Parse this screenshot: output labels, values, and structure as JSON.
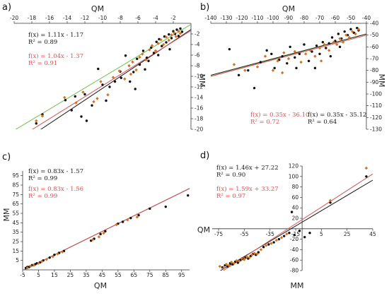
{
  "chart_data": [
    {
      "panel": "a)",
      "type": "scatter",
      "xlabel": "QM",
      "ylabel": "MM",
      "xlim": [
        -20,
        0
      ],
      "ylim": [
        -20,
        0
      ],
      "xticks": [
        "-20",
        "-18",
        "-16",
        "-14",
        "-12",
        "-10",
        "-8",
        "-6",
        "-4",
        "-2"
      ],
      "yticks": [
        "-2",
        "-4",
        "-6",
        "-8",
        "-10",
        "-12",
        "-14",
        "-16",
        "-18",
        "-20"
      ],
      "fits": [
        {
          "eq": "f(x) = 1.11x - 1.17",
          "r2": "R² = 0.89",
          "slope": 1.11,
          "intercept": -1.17,
          "color": "#1a1a1a"
        },
        {
          "eq": "f(x) = 1.04x - 1.37",
          "r2": "R² = 0.91",
          "slope": 1.04,
          "intercept": -1.37,
          "color": "#d9534f"
        }
      ],
      "extra_lines": [
        {
          "slope": 1.0,
          "intercept": -0.2,
          "color": "#6fbf4a"
        }
      ],
      "series": [
        {
          "color": "#111111",
          "points": [
            [
              -17.5,
              -18.9
            ],
            [
              -16.8,
              -17.2
            ],
            [
              -14.2,
              -14.5
            ],
            [
              -13.1,
              -13.8
            ],
            [
              -12.0,
              -13.4
            ],
            [
              -11.8,
              -18.4
            ],
            [
              -11.2,
              -15.5
            ],
            [
              -10.5,
              -8.6
            ],
            [
              -10.0,
              -11.6
            ],
            [
              -9.6,
              -14.6
            ],
            [
              -8.6,
              -11.0
            ],
            [
              -7.9,
              -10.3
            ],
            [
              -7.4,
              -6.1
            ],
            [
              -6.9,
              -11.0
            ],
            [
              -6.5,
              -9.2
            ],
            [
              -6.1,
              -6.7
            ],
            [
              -5.8,
              -7.8
            ],
            [
              -5.4,
              -5.2
            ],
            [
              -5.0,
              -6.5
            ],
            [
              -4.8,
              -7.1
            ],
            [
              -4.5,
              -4.6
            ],
            [
              -4.2,
              -5.6
            ],
            [
              -3.9,
              -3.5
            ],
            [
              -3.6,
              -3.0
            ],
            [
              -3.3,
              -4.3
            ],
            [
              -3.0,
              -2.5
            ],
            [
              -2.8,
              -3.6
            ],
            [
              -2.5,
              -2.1
            ],
            [
              -2.2,
              -2.8
            ],
            [
              -2.0,
              -1.5
            ],
            [
              -1.8,
              -2.0
            ],
            [
              -1.6,
              -1.2
            ],
            [
              -1.4,
              -2.4
            ],
            [
              -1.2,
              -1.0
            ],
            [
              -1.0,
              -1.6
            ],
            [
              -2.4,
              -4.9
            ],
            [
              -3.7,
              -6.0
            ],
            [
              -5.2,
              -8.7
            ],
            [
              -6.3,
              -12.4
            ],
            [
              -8.0,
              -9.1
            ],
            [
              -9.2,
              -12.0
            ],
            [
              -12.4,
              -17.6
            ],
            [
              -13.5,
              -16.4
            ]
          ]
        },
        {
          "color": "#d4711f",
          "points": [
            [
              -17.5,
              -18.4
            ],
            [
              -16.8,
              -17.5
            ],
            [
              -14.3,
              -14.0
            ],
            [
              -13.0,
              -15.0
            ],
            [
              -12.2,
              -13.0
            ],
            [
              -11.0,
              -14.8
            ],
            [
              -10.2,
              -11.0
            ],
            [
              -9.4,
              -13.5
            ],
            [
              -8.8,
              -10.2
            ],
            [
              -8.1,
              -9.0
            ],
            [
              -7.5,
              -10.5
            ],
            [
              -7.0,
              -8.0
            ],
            [
              -6.6,
              -7.3
            ],
            [
              -6.2,
              -8.8
            ],
            [
              -5.8,
              -6.4
            ],
            [
              -5.5,
              -5.8
            ],
            [
              -5.1,
              -6.9
            ],
            [
              -4.7,
              -5.0
            ],
            [
              -4.4,
              -4.2
            ],
            [
              -4.0,
              -5.2
            ],
            [
              -3.7,
              -3.8
            ],
            [
              -3.4,
              -3.1
            ],
            [
              -3.1,
              -4.0
            ],
            [
              -2.8,
              -2.6
            ],
            [
              -2.5,
              -3.2
            ],
            [
              -2.2,
              -2.2
            ],
            [
              -1.9,
              -1.8
            ],
            [
              -1.7,
              -2.5
            ],
            [
              -1.4,
              -1.5
            ],
            [
              -1.2,
              -1.9
            ],
            [
              -10.6,
              -14.2
            ],
            [
              -6.8,
              -9.6
            ]
          ]
        }
      ]
    },
    {
      "panel": "b)",
      "type": "scatter",
      "xlabel": "QM",
      "ylabel": "MM",
      "xlim": [
        -140,
        -40
      ],
      "ylim": [
        -130,
        -40
      ],
      "xticks": [
        "-140",
        "-130",
        "-120",
        "-110",
        "-100",
        "-90",
        "-80",
        "-70",
        "-60",
        "-50",
        "-40"
      ],
      "yticks": [
        "-40",
        "-50",
        "-60",
        "-70",
        "-80",
        "-90",
        "-100",
        "-110",
        "-120",
        "-130"
      ],
      "fits": [
        {
          "eq": "f(x) = 0.35x - 36.10",
          "r2": "R² = 0.72",
          "slope": 0.35,
          "intercept": -36.1,
          "color": "#d9534f"
        },
        {
          "eq": "f(x) = 0.35x - 35.12",
          "r2": "R² = 0.64",
          "slope": 0.35,
          "intercept": -35.12,
          "color": "#1a1a1a"
        }
      ],
      "extra_lines": [
        {
          "slope": 0.36,
          "intercept": -34.6,
          "color": "#6fbf4a"
        }
      ],
      "series": [
        {
          "color": "#111111",
          "points": [
            [
              -128,
              -62
            ],
            [
              -122,
              -84
            ],
            [
              -116,
              -80
            ],
            [
              -112,
              -95
            ],
            [
              -108,
              -73
            ],
            [
              -104,
              -63
            ],
            [
              -101,
              -66
            ],
            [
              -99,
              -78
            ],
            [
              -96,
              -71
            ],
            [
              -94,
              -68
            ],
            [
              -91,
              -74
            ],
            [
              -89,
              -60
            ],
            [
              -86,
              -69
            ],
            [
              -83,
              -66
            ],
            [
              -80,
              -58
            ],
            [
              -77,
              -72
            ],
            [
              -75,
              -64
            ],
            [
              -72,
              -59
            ],
            [
              -70,
              -66
            ],
            [
              -68,
              -56
            ],
            [
              -66,
              -61
            ],
            [
              -64,
              -57
            ],
            [
              -62,
              -52
            ],
            [
              -60,
              -55
            ],
            [
              -58,
              -49
            ],
            [
              -56,
              -53
            ],
            [
              -54,
              -47
            ],
            [
              -52,
              -50
            ],
            [
              -50,
              -45
            ],
            [
              -48,
              -48
            ],
            [
              -46,
              -44
            ],
            [
              -45,
              -46
            ],
            [
              -57,
              -60
            ],
            [
              -63,
              -68
            ],
            [
              -73,
              -78
            ],
            [
              -85,
              -78
            ]
          ]
        },
        {
          "color": "#d4711f",
          "points": [
            [
              -125,
              -75
            ],
            [
              -118,
              -80
            ],
            [
              -110,
              -77
            ],
            [
              -105,
              -68
            ],
            [
              -100,
              -80
            ],
            [
              -97,
              -72
            ],
            [
              -93,
              -65
            ],
            [
              -90,
              -70
            ],
            [
              -86,
              -64
            ],
            [
              -82,
              -73
            ],
            [
              -79,
              -66
            ],
            [
              -76,
              -63
            ],
            [
              -73,
              -68
            ],
            [
              -70,
              -61
            ],
            [
              -67,
              -58
            ],
            [
              -64,
              -63
            ],
            [
              -61,
              -56
            ],
            [
              -59,
              -58
            ],
            [
              -57,
              -53
            ],
            [
              -55,
              -56
            ],
            [
              -53,
              -50
            ],
            [
              -51,
              -52
            ],
            [
              -49,
              -47
            ],
            [
              -47,
              -49
            ],
            [
              -45,
              -45
            ],
            [
              -69,
              -72
            ],
            [
              -94,
              -82
            ]
          ]
        }
      ]
    },
    {
      "panel": "c)",
      "type": "scatter",
      "xlabel": "QM",
      "ylabel": "MM",
      "xlim": [
        -5,
        100
      ],
      "ylim": [
        -5,
        100
      ],
      "xticks": [
        "-5",
        "5",
        "15",
        "25",
        "35",
        "45",
        "55",
        "65",
        "75",
        "85",
        "95"
      ],
      "yticks": [
        "5",
        "15",
        "25",
        "35",
        "45",
        "55",
        "65",
        "75",
        "85",
        "95"
      ],
      "fits": [
        {
          "eq": "f(x) = 0.83x - 1.57",
          "r2": "R² = 0.99",
          "slope": 0.83,
          "intercept": -1.57,
          "color": "#1a1a1a"
        },
        {
          "eq": "f(x) = 0.83x - 1.56",
          "r2": "R² = 0.99",
          "slope": 0.83,
          "intercept": -1.56,
          "color": "#d9534f"
        }
      ],
      "extra_lines": [],
      "series": [
        {
          "color": "#111111",
          "points": [
            [
              -3,
              -3
            ],
            [
              -2,
              -2
            ],
            [
              -1,
              -2
            ],
            [
              0,
              -1
            ],
            [
              1,
              0
            ],
            [
              2,
              0
            ],
            [
              3,
              1
            ],
            [
              4,
              2
            ],
            [
              6,
              3
            ],
            [
              8,
              5
            ],
            [
              12,
              8
            ],
            [
              15,
              11
            ],
            [
              18,
              13
            ],
            [
              21,
              15
            ],
            [
              38,
              26
            ],
            [
              40,
              28
            ],
            [
              44,
              33
            ],
            [
              47,
              36
            ],
            [
              55,
              44
            ],
            [
              58,
              46
            ],
            [
              63,
              50
            ],
            [
              68,
              53
            ],
            [
              75,
              60
            ],
            [
              85,
              62
            ],
            [
              99,
              74
            ]
          ]
        },
        {
          "color": "#d4711f",
          "points": [
            [
              -2,
              -3
            ],
            [
              0,
              -1
            ],
            [
              2,
              0
            ],
            [
              5,
              2
            ],
            [
              7,
              4
            ],
            [
              10,
              6
            ],
            [
              14,
              9
            ],
            [
              17,
              12
            ],
            [
              20,
              14
            ],
            [
              39,
              27
            ],
            [
              43,
              30
            ],
            [
              46,
              34
            ],
            [
              54,
              43
            ],
            [
              61,
              48
            ],
            [
              67,
              51
            ]
          ]
        }
      ]
    },
    {
      "panel": "d)",
      "type": "scatter",
      "xlabel": "MM",
      "ylabel": "QM",
      "xlim": [
        -80,
        45
      ],
      "ylim": [
        -80,
        120
      ],
      "xticks": [
        "-75",
        "-55",
        "-35",
        "-15",
        "5",
        "25",
        "45"
      ],
      "yticks": [
        "120",
        "100",
        "80",
        "60",
        "40",
        "20",
        "-20",
        "-40",
        "-60",
        "-80"
      ],
      "fits": [
        {
          "eq": "f(x) = 1.46x + 27.22",
          "r2": "R² = 0.90",
          "slope": 1.46,
          "intercept": 27.22,
          "color": "#1a1a1a"
        },
        {
          "eq": "f(x) = 1.59x + 33.27",
          "r2": "R² = 0.97",
          "slope": 1.59,
          "intercept": 33.27,
          "color": "#d9534f"
        }
      ],
      "extra_lines": [],
      "series": [
        {
          "color": "#111111",
          "points": [
            [
              -72,
              -74
            ],
            [
              -70,
              -70
            ],
            [
              -68,
              -72
            ],
            [
              -66,
              -66
            ],
            [
              -64,
              -68
            ],
            [
              -62,
              -63
            ],
            [
              -60,
              -65
            ],
            [
              -58,
              -60
            ],
            [
              -56,
              -58
            ],
            [
              -54,
              -55
            ],
            [
              -52,
              -57
            ],
            [
              -50,
              -52
            ],
            [
              -48,
              -48
            ],
            [
              -46,
              -50
            ],
            [
              -44,
              -45
            ],
            [
              -40,
              -35
            ],
            [
              -36,
              -30
            ],
            [
              -32,
              -26
            ],
            [
              -28,
              -20
            ],
            [
              -24,
              -14
            ],
            [
              -20,
              -8
            ],
            [
              -16,
              -12
            ],
            [
              -12,
              -4
            ],
            [
              -8,
              -16
            ],
            [
              -4,
              -8
            ],
            [
              12,
              50
            ],
            [
              40,
              100
            ],
            [
              -18,
              32
            ]
          ]
        },
        {
          "color": "#d4711f",
          "points": [
            [
              -74,
              -72
            ],
            [
              -71,
              -75
            ],
            [
              -69,
              -68
            ],
            [
              -67,
              -70
            ],
            [
              -65,
              -64
            ],
            [
              -63,
              -66
            ],
            [
              -61,
              -61
            ],
            [
              -59,
              -62
            ],
            [
              -57,
              -57
            ],
            [
              -55,
              -59
            ],
            [
              -53,
              -54
            ],
            [
              -51,
              -55
            ],
            [
              -49,
              -50
            ],
            [
              -47,
              -47
            ],
            [
              -45,
              -48
            ],
            [
              -42,
              -40
            ],
            [
              -38,
              -32
            ],
            [
              -34,
              -28
            ],
            [
              -30,
              -22
            ],
            [
              -26,
              -17
            ],
            [
              -22,
              -10
            ],
            [
              12,
              54
            ],
            [
              40,
              116
            ]
          ]
        }
      ]
    }
  ]
}
